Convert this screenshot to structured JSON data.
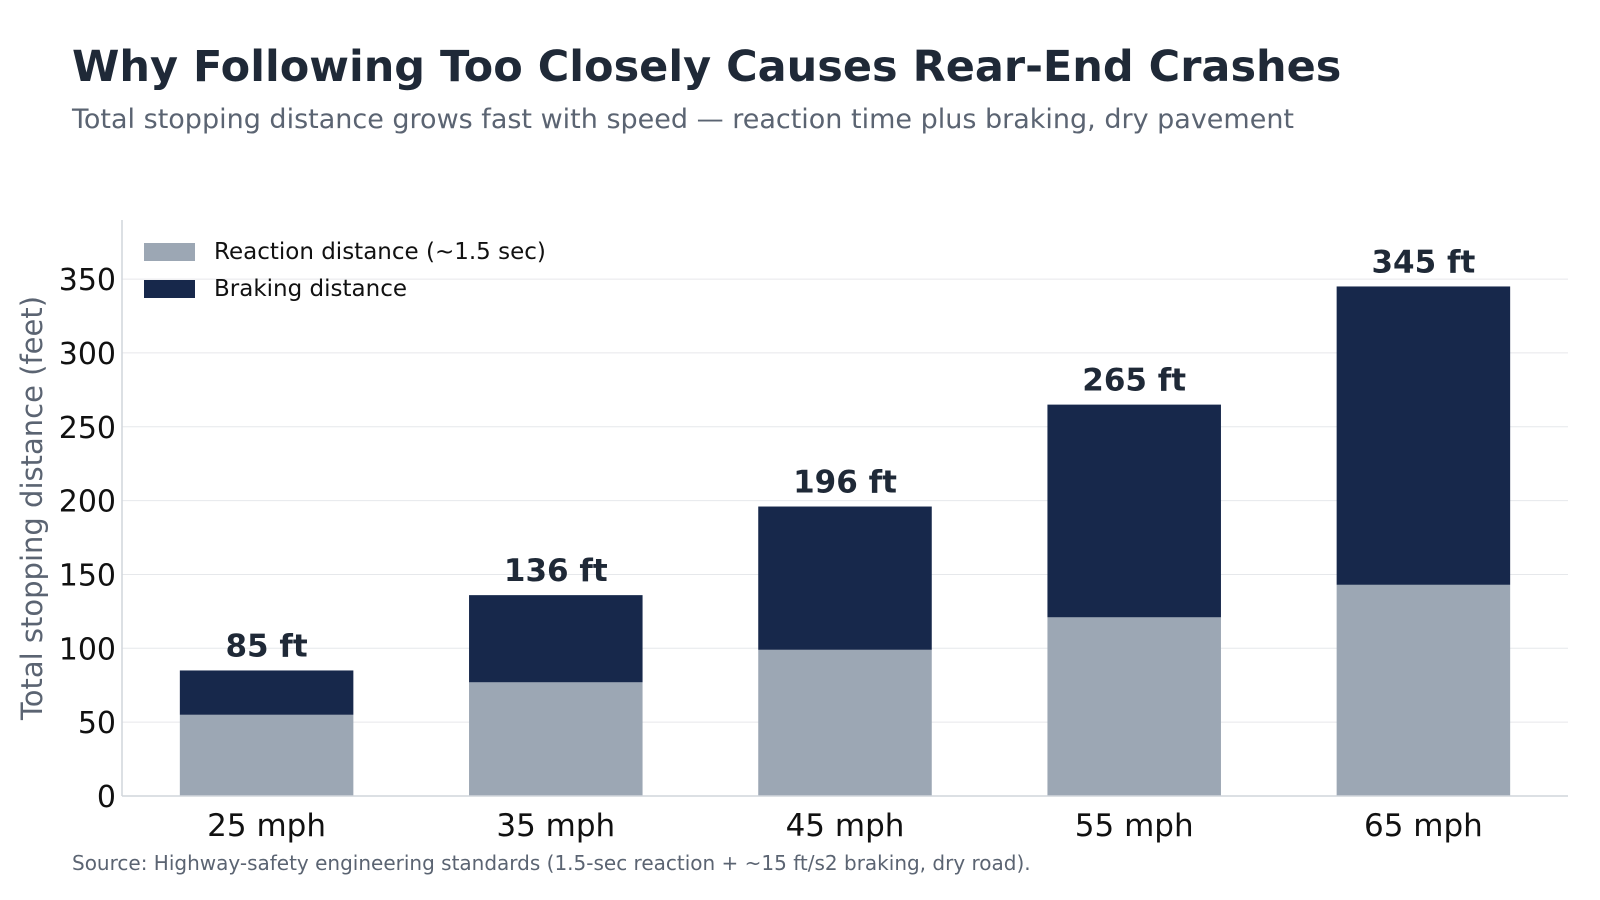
{
  "header": {
    "title": "Why Following Too Closely Causes Rear-End Crashes",
    "subtitle": "Total stopping distance grows fast with speed — reaction time plus braking, dry pavement"
  },
  "footer": {
    "source": "Source: Highway-safety engineering standards (1.5-sec reaction + ~15 ft/s2 braking, dry road)."
  },
  "chart_data": {
    "type": "bar",
    "stacked": true,
    "categories": [
      "25 mph",
      "35 mph",
      "45 mph",
      "55 mph",
      "65 mph"
    ],
    "series": [
      {
        "name": "Reaction distance (~1.5 sec)",
        "values": [
          55,
          77,
          99,
          121,
          143
        ],
        "color": "#9ca7b4"
      },
      {
        "name": "Braking distance",
        "values": [
          30,
          59,
          97,
          144,
          202
        ],
        "color": "#17284b"
      }
    ],
    "totals": [
      85,
      136,
      196,
      265,
      345
    ],
    "total_labels": [
      "85 ft",
      "136 ft",
      "196 ft",
      "265 ft",
      "345 ft"
    ],
    "ylabel": "Total stopping distance (feet)",
    "xlabel": "",
    "ylim": [
      0,
      390
    ],
    "yticks": [
      0,
      50,
      100,
      150,
      200,
      250,
      300,
      350
    ],
    "grid": "horizontal",
    "legend_position": "top-left"
  }
}
